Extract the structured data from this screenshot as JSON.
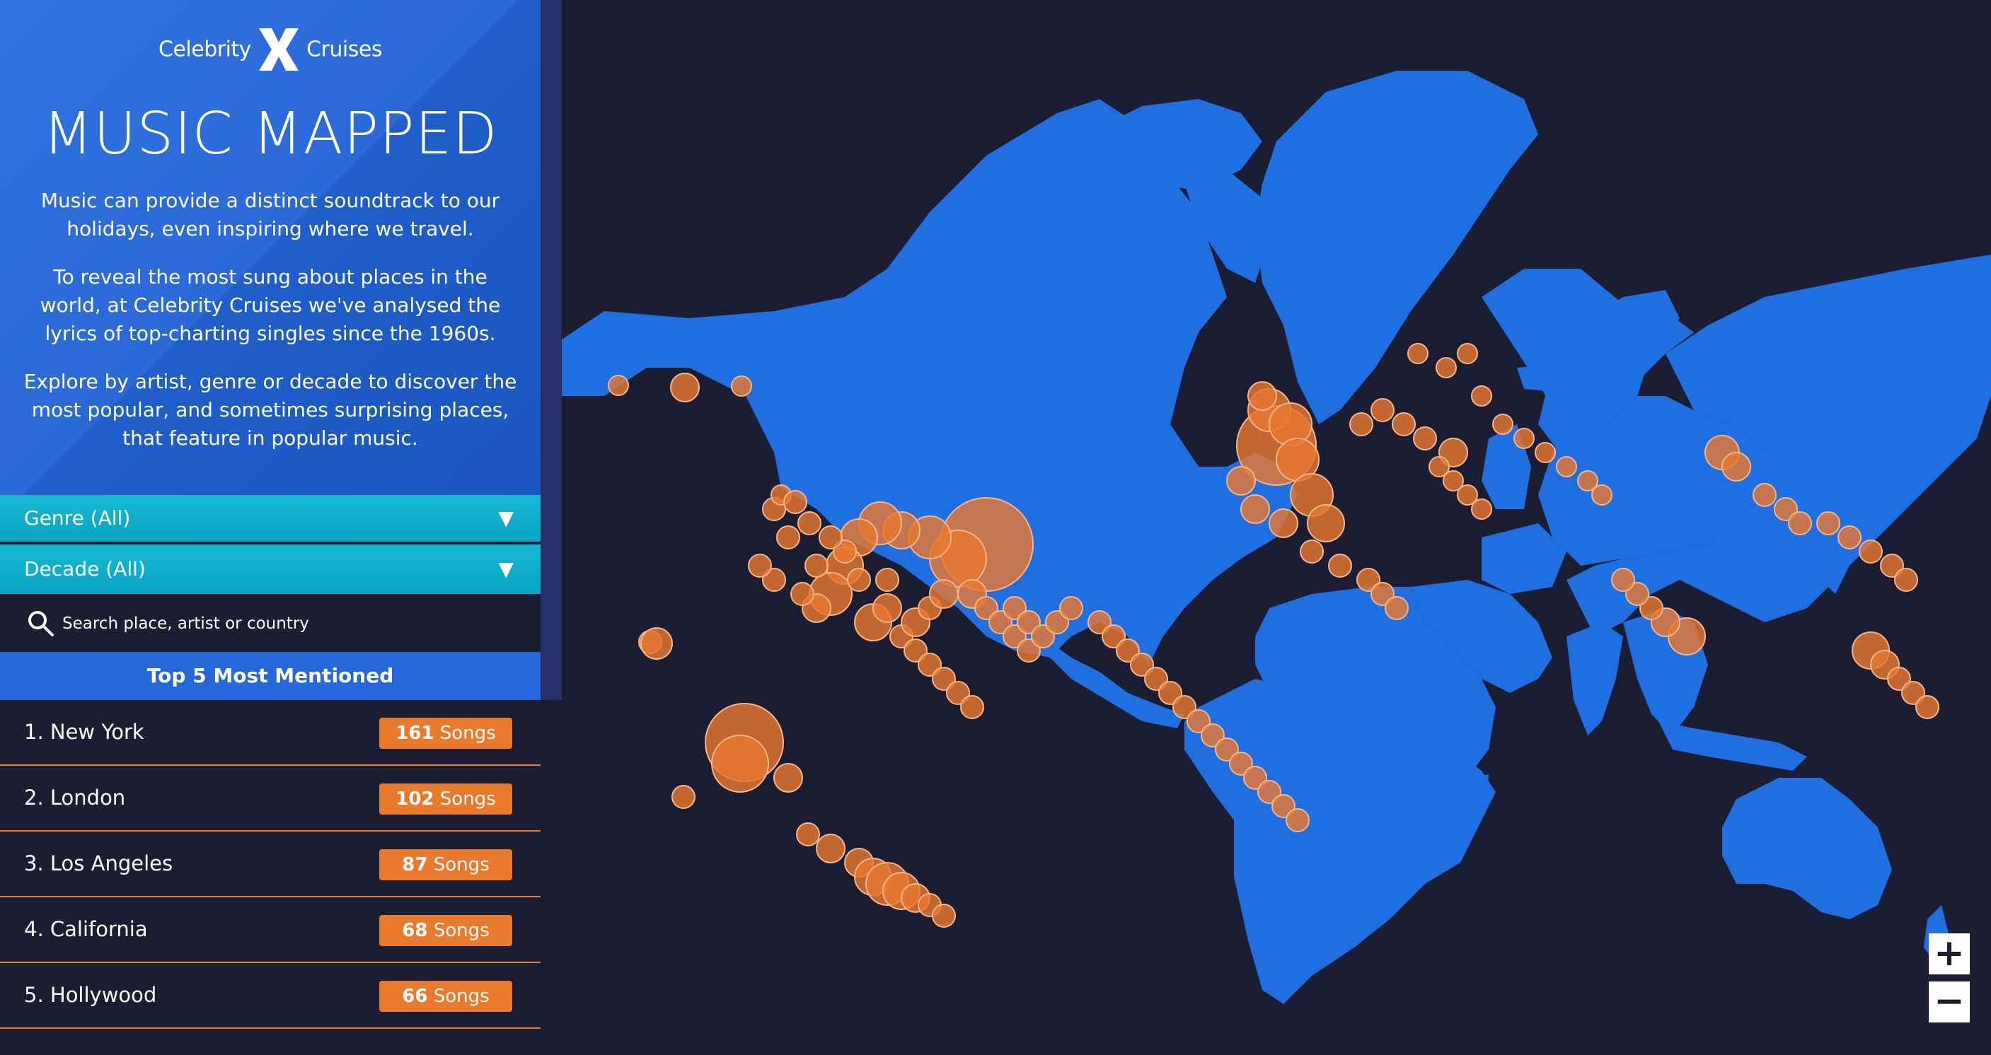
{
  "brand": {
    "left": "Celebrity",
    "right": "Cruises"
  },
  "title": "MUSIC MAPPED",
  "intro": [
    "Music can provide a distinct soundtrack to our holidays, even inspiring where we travel.",
    "To reveal the most sung about places in the world, at Celebrity Cruises we've analysed the lyrics of top-charting singles since the 1960s.",
    "Explore by artist, genre or decade to discover the most popular, and sometimes surprising places, that feature in popular music."
  ],
  "filters": {
    "genre": "Genre (All)",
    "decade": "Decade (All)"
  },
  "search": {
    "placeholder": "Search place, artist or country"
  },
  "top5": {
    "header": "Top 5 Most Mentioned",
    "unit": "Songs",
    "items": [
      {
        "label": "1. New York",
        "count": "161"
      },
      {
        "label": "2. London",
        "count": "102"
      },
      {
        "label": "3. Los Angeles",
        "count": "87"
      },
      {
        "label": "4. California",
        "count": "68"
      },
      {
        "label": "5. Hollywood",
        "count": "66"
      }
    ]
  },
  "colors": {
    "land": "#1f6fe0",
    "ocean": "#1b1e33",
    "marker": "#e8772e",
    "accent": "#12b2cf"
  },
  "icons": {
    "search": "search-icon",
    "zoom_in": "plus-icon",
    "zoom_out": "minus-icon",
    "logo": "x-logo-icon"
  },
  "zoom": {
    "in": "+",
    "out": "−"
  }
}
